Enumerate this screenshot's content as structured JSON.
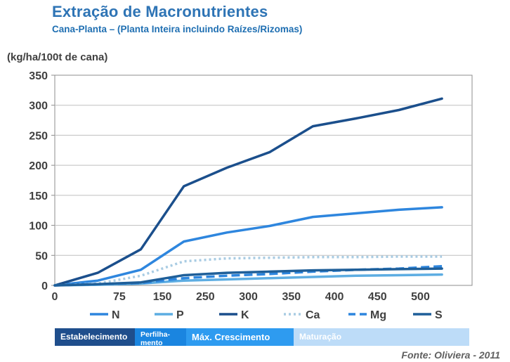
{
  "chart_data": {
    "type": "line",
    "title": "Extração de Macronutrientes",
    "subtitle": "Cana-Planta – (Planta Inteira incluindo Raízes/Rizomas)",
    "ylabel": "(kg/ha/100t de cana)",
    "xlabel": "",
    "ylim": [
      0,
      350
    ],
    "yticks": [
      0,
      50,
      100,
      150,
      200,
      250,
      300,
      350
    ],
    "xtick_labels": [
      "0",
      "75",
      "150",
      "250",
      "300",
      "350",
      "400",
      "450",
      "500"
    ],
    "x_positions": [
      0,
      1.5,
      2.5,
      3.5,
      4.5,
      5.5,
      6.5,
      7.5,
      8.5
    ],
    "xlim": [
      0,
      9.7
    ],
    "grid": "horizontal",
    "legend_position": "bottom",
    "series": [
      {
        "name": "N",
        "color": "#2E86DE",
        "style": "solid",
        "x": [
          0,
          1,
          2,
          3,
          4,
          5,
          6,
          7,
          8,
          9
        ],
        "y": [
          0,
          8,
          26,
          73,
          88,
          99,
          114,
          120,
          126,
          130
        ]
      },
      {
        "name": "P",
        "color": "#5DADE2",
        "style": "solid",
        "x": [
          0,
          1,
          2,
          3,
          4,
          5,
          6,
          7,
          8,
          9
        ],
        "y": [
          0,
          1,
          3,
          8,
          10,
          12,
          14,
          16,
          17,
          18
        ]
      },
      {
        "name": "K",
        "color": "#1B4F8C",
        "style": "solid",
        "x": [
          0,
          1,
          2,
          3,
          4,
          5,
          6,
          7,
          8,
          9
        ],
        "y": [
          0,
          21,
          60,
          165,
          196,
          222,
          265,
          278,
          292,
          311
        ]
      },
      {
        "name": "Ca",
        "color": "#A9CCE3",
        "style": "dotted",
        "x": [
          0,
          1,
          2,
          3,
          4,
          5,
          6,
          7,
          8,
          9
        ],
        "y": [
          0,
          3,
          16,
          40,
          45,
          46,
          47,
          47,
          48,
          48
        ]
      },
      {
        "name": "Mg",
        "color": "#2E86DE",
        "style": "dashed",
        "x": [
          0,
          1,
          2,
          3,
          4,
          5,
          6,
          7,
          8,
          9
        ],
        "y": [
          0,
          2,
          4,
          12,
          16,
          19,
          23,
          26,
          28,
          32
        ]
      },
      {
        "name": "S",
        "color": "#1F5F99",
        "style": "solid",
        "x": [
          0,
          1,
          2,
          3,
          4,
          5,
          6,
          7,
          8,
          9
        ],
        "y": [
          0,
          2,
          5,
          17,
          21,
          23,
          25,
          26,
          27,
          28
        ]
      }
    ]
  },
  "phases": [
    {
      "label": "Estabelecimento",
      "color": "#1F4E8C",
      "fraction": 0.193
    },
    {
      "label": "Perfilha-mento",
      "color": "#1A85E0",
      "fraction": 0.124
    },
    {
      "label": "Máx. Crescimento",
      "color": "#2E9BF0",
      "fraction": 0.259
    },
    {
      "label": "Maturação",
      "color": "#BDDCF8",
      "fraction": 0.424
    }
  ],
  "source": "Fonte: Oliviera - 2011"
}
